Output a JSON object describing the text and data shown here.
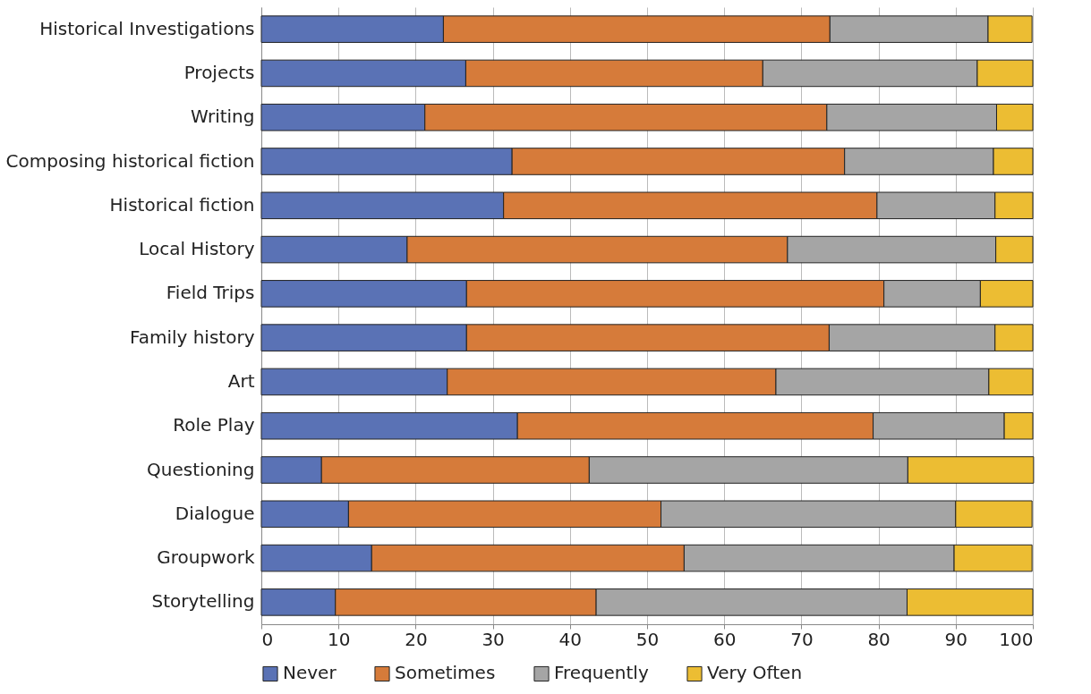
{
  "chart_data": {
    "type": "bar",
    "orientation": "horizontal",
    "stacked": true,
    "grid": "x",
    "legend": "bottom",
    "categories": [
      "Historical Investigations",
      "Projects",
      "Writing",
      "Composing historical fiction",
      "Historical fiction",
      "Local History",
      "Field Trips",
      "Family history",
      "Art",
      "Role Play",
      "Questioning",
      "Dialogue",
      "Groupwork",
      "Storytelling"
    ],
    "xlim": [
      0,
      100
    ],
    "xticks": [
      0,
      10,
      20,
      30,
      40,
      50,
      60,
      70,
      80,
      90,
      100
    ],
    "series": [
      {
        "name": "Never",
        "color": "#5a72b5",
        "values": [
          23.6,
          26.5,
          21.2,
          32.5,
          31.4,
          18.9,
          26.6,
          26.6,
          24.1,
          33.2,
          7.8,
          11.3,
          14.3,
          9.6
        ]
      },
      {
        "name": "Sometimes",
        "color": "#d67b3a",
        "values": [
          50.1,
          38.5,
          52.1,
          43.1,
          48.4,
          49.3,
          54.1,
          47.0,
          42.6,
          46.1,
          34.7,
          40.5,
          40.5,
          33.8
        ]
      },
      {
        "name": "Frequently",
        "color": "#a5a5a5",
        "values": [
          20.5,
          27.8,
          22.0,
          19.3,
          15.3,
          27.0,
          12.5,
          21.5,
          27.6,
          17.0,
          41.3,
          38.2,
          35.0,
          40.3
        ]
      },
      {
        "name": "Very Often",
        "color": "#ecbd33",
        "values": [
          5.7,
          7.2,
          4.7,
          5.1,
          4.9,
          4.8,
          6.8,
          4.9,
          5.7,
          3.7,
          16.3,
          9.9,
          10.1,
          16.3
        ]
      }
    ]
  }
}
